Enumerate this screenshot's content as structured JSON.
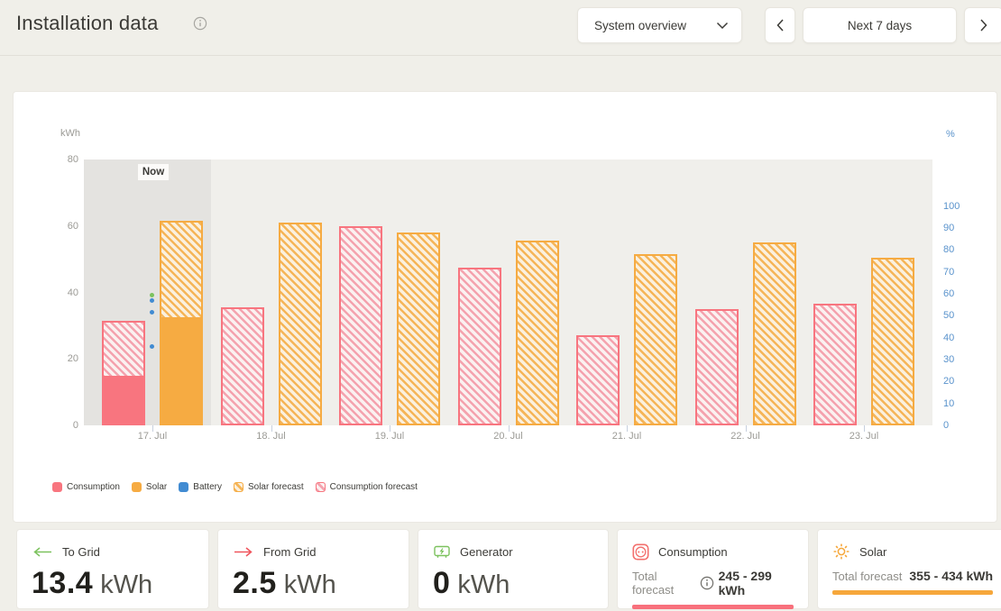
{
  "header": {
    "title": "Installation data",
    "view_selector": {
      "value": "System overview"
    },
    "nav": {
      "range_label": "Next 7 days"
    }
  },
  "chart_data": {
    "type": "bar",
    "now_label": "Now",
    "categories": [
      "17. Jul",
      "18. Jul",
      "19. Jul",
      "20. Jul",
      "21. Jul",
      "22. Jul",
      "23. Jul"
    ],
    "series": [
      {
        "name": "Consumption",
        "style": "solid",
        "color": "#f8757f",
        "axis": "kWh",
        "values": [
          14.5,
          null,
          null,
          null,
          null,
          null,
          null
        ]
      },
      {
        "name": "Solar",
        "style": "solid",
        "color": "#f6ab42",
        "axis": "kWh",
        "values": [
          32,
          null,
          null,
          null,
          null,
          null,
          null
        ]
      },
      {
        "name": "Consumption forecast",
        "style": "hatched",
        "color": "#f8757f",
        "axis": "kWh",
        "values": [
          31.5,
          35.5,
          60,
          47.5,
          27,
          35,
          36.5
        ]
      },
      {
        "name": "Solar forecast",
        "style": "hatched",
        "color": "#f6ab42",
        "axis": "kWh",
        "values": [
          61.5,
          61,
          58,
          55.5,
          51.5,
          55,
          50.5
        ]
      }
    ],
    "battery_points": {
      "category_index": 0,
      "pct_values": [
        57,
        51.5,
        36
      ],
      "color": "#418bd2"
    },
    "green_marker": {
      "category_index": 0,
      "pct_value": 59.5,
      "color": "#7cc25e"
    },
    "ylabel_left": "kWh",
    "ylim_left": [
      0,
      80
    ],
    "yticks_left": [
      0,
      20,
      40,
      60,
      80
    ],
    "ylabel_right": "%",
    "ylim_right": [
      0,
      100
    ],
    "yticks_right": [
      0,
      10,
      20,
      30,
      40,
      50,
      60,
      70,
      80,
      90,
      100
    ],
    "grid": false,
    "legend_position": "bottom",
    "legend": [
      {
        "label": "Consumption",
        "color": "#f8757f",
        "style": "solid"
      },
      {
        "label": "Solar",
        "color": "#f6ab42",
        "style": "solid"
      },
      {
        "label": "Battery",
        "color": "#418bd2",
        "style": "solid"
      },
      {
        "label": "Solar forecast",
        "color": "#f6ab42",
        "style": "hatched"
      },
      {
        "label": "Consumption forecast",
        "color": "#f8757f",
        "style": "hatched"
      }
    ]
  },
  "summary_cards": {
    "to_grid": {
      "label": "To Grid",
      "value": "13.4",
      "unit": "kWh",
      "icon": "arrow-left",
      "icon_color": "#7cc25e"
    },
    "from_grid": {
      "label": "From Grid",
      "value": "2.5",
      "unit": "kWh",
      "icon": "arrow-right",
      "icon_color": "#f0545c"
    },
    "generator": {
      "label": "Generator",
      "value": "0",
      "unit": "kWh",
      "icon": "generator",
      "icon_color": "#7cc25e"
    },
    "consumption": {
      "label": "Consumption",
      "forecast_label": "Total forecast",
      "forecast_value": "245 - 299 kWh",
      "bar_color": "#f8707c",
      "icon": "socket",
      "icon_color": "#f3706e"
    },
    "solar": {
      "label": "Solar",
      "forecast_label": "Total forecast",
      "forecast_value": "355 - 434 kWh",
      "bar_color": "#f6a73b",
      "icon": "sun",
      "icon_color": "#f6a73b"
    }
  }
}
